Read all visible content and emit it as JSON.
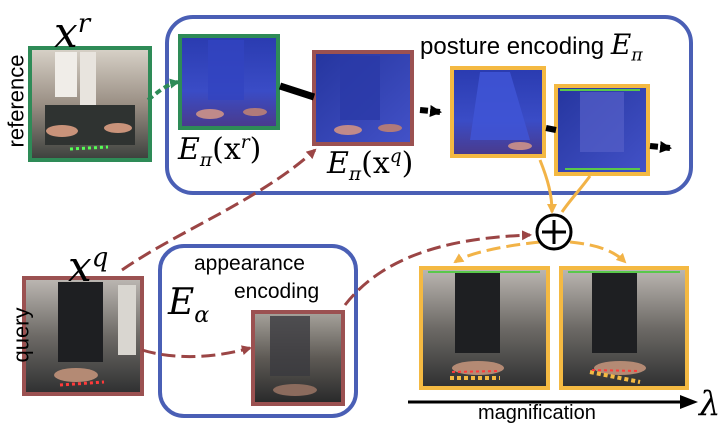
{
  "labels": {
    "xr_main": "x",
    "xr_sup": "r",
    "reference": "reference",
    "posture_title": "posture encoding",
    "e_pi_main": "E",
    "e_pi_sub": "π",
    "epi_xr": "E",
    "epi_xr_sub": "π",
    "epi_xr_arg": "(x",
    "epi_xr_sup": "r",
    "epi_xr_close": ")",
    "epi_xq": "E",
    "epi_xq_sub": "π",
    "epi_xq_arg": "(x",
    "epi_xq_sup": "q",
    "epi_xq_close": ")",
    "xq_main": "x",
    "xq_sup": "q",
    "query": "query",
    "appearance": "appearance",
    "encoding": "encoding",
    "e_alpha_main": "E",
    "e_alpha_sub": "α",
    "magnification": "magnification",
    "lambda": "λ",
    "plus": "+"
  },
  "colors": {
    "posture_box": "#4a5fb5",
    "appearance_box": "#4a5fb5",
    "reference_frame": "#2e8b57",
    "query_frame": "#9b5151",
    "output_frame": "#f4b942",
    "dashed_red": "#9b4545",
    "dashed_orange": "#f2b347",
    "arrow_green": "#2e8b57"
  }
}
